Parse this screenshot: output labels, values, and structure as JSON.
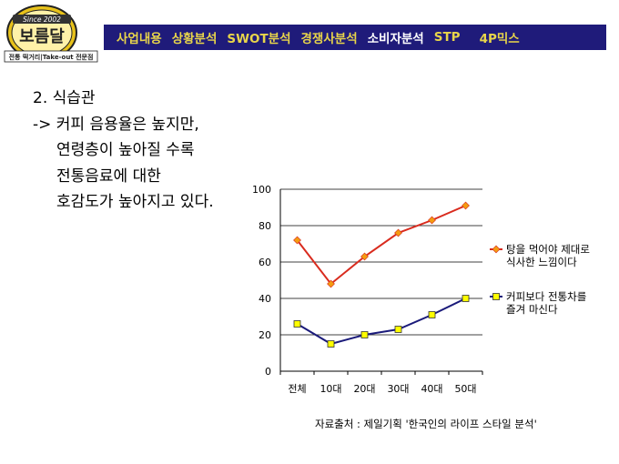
{
  "logo": {
    "since": "Since 2002",
    "name": "보름달",
    "tagline": "전통 떡거리|Take-out 전문점"
  },
  "nav": {
    "items": [
      {
        "label": "사업내용",
        "active": false
      },
      {
        "label": "상황분석",
        "active": false
      },
      {
        "label": "SWOT분석",
        "active": false
      },
      {
        "label": "경쟁사분석",
        "active": false
      },
      {
        "label": "소비자분석",
        "active": true
      },
      {
        "label": "STP",
        "active": false
      },
      {
        "label": "4P믹스",
        "active": false
      }
    ]
  },
  "content": {
    "heading": "2. 식습관",
    "lines": [
      "-> 커피 음용율은 높지만,",
      "연령층이 높아질 수록",
      "전통음료에 대한",
      "호감도가 높아지고 있다."
    ]
  },
  "chart_data": {
    "type": "line",
    "categories": [
      "전체",
      "10대",
      "20대",
      "30대",
      "40대",
      "50대"
    ],
    "ylim": [
      0,
      100
    ],
    "yticks": [
      "0",
      "20",
      "40",
      "60",
      "80",
      "100"
    ],
    "grid": true,
    "legend_position": "right",
    "series": [
      {
        "name": "탕을 먹어야 제대로 식사한 느낌이다",
        "legend_lines": [
          "탕을 먹어야 제대로",
          "식사한 느낌이다"
        ],
        "color": "#d92b1e",
        "marker_color": "#f39c12",
        "marker": "diamond",
        "values": [
          72,
          48,
          63,
          76,
          83,
          91
        ]
      },
      {
        "name": "커피보다 전통차를 즐겨 마신다",
        "legend_lines": [
          "커피보다 전통차를",
          "즐겨 마신다"
        ],
        "color": "#1a1a7a",
        "marker_color": "#ffff00",
        "marker": "square",
        "values": [
          26,
          15,
          20,
          23,
          31,
          40
        ]
      }
    ]
  },
  "source": "자료출처 : 제일기획 '한국인의 라이프 스타일 분석'"
}
